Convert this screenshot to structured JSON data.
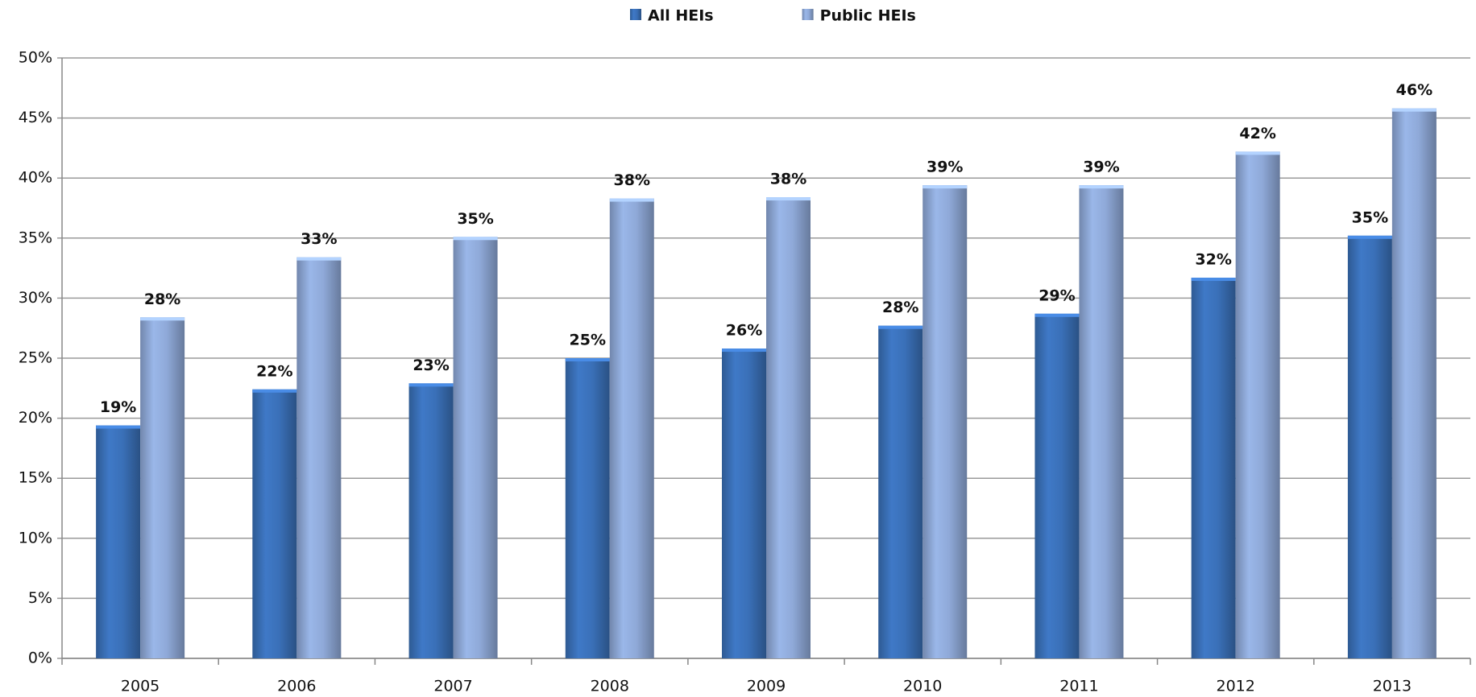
{
  "chart_data": {
    "type": "bar",
    "categories": [
      "2005",
      "2006",
      "2007",
      "2008",
      "2009",
      "2010",
      "2011",
      "2012",
      "2013"
    ],
    "series": [
      {
        "name": "All HEIs",
        "color": "#3a70b8",
        "values": [
          19.4,
          22.4,
          22.9,
          25.0,
          25.8,
          27.7,
          28.7,
          31.7,
          35.2
        ],
        "value_labels": [
          "19%",
          "22%",
          "23%",
          "25%",
          "26%",
          "28%",
          "29%",
          "32%",
          "35%"
        ]
      },
      {
        "name": "Public HEIs",
        "color": "#8fa9d8",
        "values": [
          28.4,
          33.4,
          35.1,
          38.3,
          38.4,
          39.4,
          39.4,
          42.2,
          45.8
        ],
        "value_labels": [
          "28%",
          "33%",
          "35%",
          "38%",
          "38%",
          "39%",
          "39%",
          "42%",
          "46%"
        ]
      }
    ],
    "ylim": [
      0,
      50
    ],
    "yticks": [
      {
        "value": 0,
        "label": "0%"
      },
      {
        "value": 5,
        "label": "5%"
      },
      {
        "value": 10,
        "label": "10%"
      },
      {
        "value": 15,
        "label": "15%"
      },
      {
        "value": 20,
        "label": "20%"
      },
      {
        "value": 25,
        "label": "25%"
      },
      {
        "value": 30,
        "label": "30%"
      },
      {
        "value": 35,
        "label": "35%"
      },
      {
        "value": 40,
        "label": "40%"
      },
      {
        "value": 45,
        "label": "45%"
      },
      {
        "value": 50,
        "label": "50%"
      }
    ],
    "grid": true,
    "legend": "top"
  }
}
